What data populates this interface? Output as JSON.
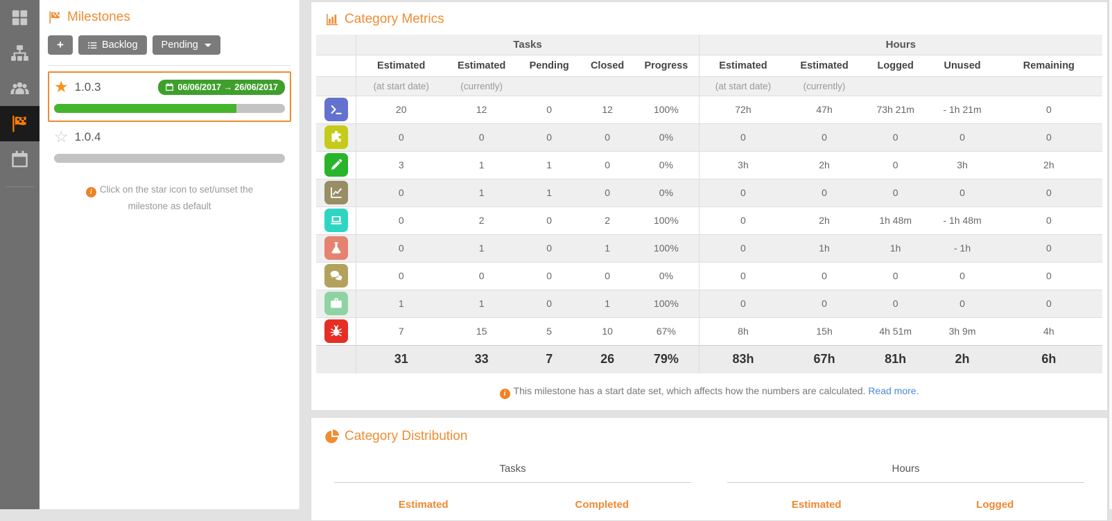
{
  "sidebar": {
    "items": [
      {
        "id": "dashboard",
        "icon": "grid",
        "active": false
      },
      {
        "id": "hierarchy",
        "icon": "sitemap",
        "active": false
      },
      {
        "id": "team",
        "icon": "users",
        "active": false
      },
      {
        "id": "milestones",
        "icon": "flag",
        "active": true
      },
      {
        "id": "calendar",
        "icon": "calendar",
        "active": false
      }
    ]
  },
  "milestones": {
    "title": "Milestones",
    "add_button": "+",
    "backlog_button": "Backlog",
    "filter_button": "Pending",
    "items": [
      {
        "version": "1.0.3",
        "starred": true,
        "date_range": "06/06/2017 → 26/06/2017",
        "progress": 79,
        "selected": true
      },
      {
        "version": "1.0.4",
        "starred": false,
        "date_range": "",
        "progress": 0,
        "selected": false
      }
    ],
    "hint": "Click on the star icon to set/unset the milestone as default"
  },
  "metrics": {
    "title": "Category Metrics",
    "groups": [
      "Tasks",
      "Hours"
    ],
    "task_columns": [
      "Estimated",
      "Estimated",
      "Pending",
      "Closed",
      "Progress"
    ],
    "hour_columns": [
      "Estimated",
      "Estimated",
      "Logged",
      "Unused",
      "Remaining"
    ],
    "sublabels": [
      "(at start date)",
      "(currently)"
    ],
    "rows": [
      {
        "category": "terminal",
        "color": "#6372ce",
        "tasks": [
          "20",
          "12",
          "0",
          "12",
          "100%"
        ],
        "hours": [
          "72h",
          "47h",
          "73h 21m",
          "- 1h 21m",
          "0"
        ]
      },
      {
        "category": "puzzle",
        "color": "#c4cb19",
        "tasks": [
          "0",
          "0",
          "0",
          "0",
          "0%"
        ],
        "hours": [
          "0",
          "0",
          "0",
          "0",
          "0"
        ]
      },
      {
        "category": "pencil",
        "color": "#28b52b",
        "tasks": [
          "3",
          "1",
          "1",
          "0",
          "0%"
        ],
        "hours": [
          "3h",
          "2h",
          "0",
          "3h",
          "2h"
        ]
      },
      {
        "category": "chartline",
        "color": "#978e65",
        "tasks": [
          "0",
          "1",
          "1",
          "0",
          "0%"
        ],
        "hours": [
          "0",
          "0",
          "0",
          "0",
          "0"
        ]
      },
      {
        "category": "laptop",
        "color": "#2fd5c3",
        "tasks": [
          "0",
          "2",
          "0",
          "2",
          "100%"
        ],
        "hours": [
          "0",
          "2h",
          "1h 48m",
          "- 1h 48m",
          "0"
        ]
      },
      {
        "category": "flask",
        "color": "#e58270",
        "tasks": [
          "0",
          "1",
          "0",
          "1",
          "100%"
        ],
        "hours": [
          "0",
          "1h",
          "1h",
          "- 1h",
          "0"
        ]
      },
      {
        "category": "comments",
        "color": "#b3a25c",
        "tasks": [
          "0",
          "0",
          "0",
          "0",
          "0%"
        ],
        "hours": [
          "0",
          "0",
          "0",
          "0",
          "0"
        ]
      },
      {
        "category": "briefcase",
        "color": "#90d3a2",
        "tasks": [
          "1",
          "1",
          "0",
          "1",
          "100%"
        ],
        "hours": [
          "0",
          "0",
          "0",
          "0",
          "0"
        ]
      },
      {
        "category": "bug",
        "color": "#e62e24",
        "tasks": [
          "7",
          "15",
          "5",
          "10",
          "67%"
        ],
        "hours": [
          "8h",
          "15h",
          "4h 51m",
          "3h 9m",
          "4h"
        ]
      }
    ],
    "totals": {
      "tasks": [
        "31",
        "33",
        "7",
        "26",
        "79%"
      ],
      "hours": [
        "83h",
        "67h",
        "81h",
        "2h",
        "6h"
      ]
    },
    "note": "This milestone has a start date set, which affects how the numbers are calculated.",
    "note_link": "Read more."
  },
  "distribution": {
    "title": "Category Distribution",
    "sections": [
      {
        "label": "Tasks",
        "columns": [
          "Estimated",
          "Completed"
        ]
      },
      {
        "label": "Hours",
        "columns": [
          "Estimated",
          "Logged"
        ]
      }
    ]
  }
}
